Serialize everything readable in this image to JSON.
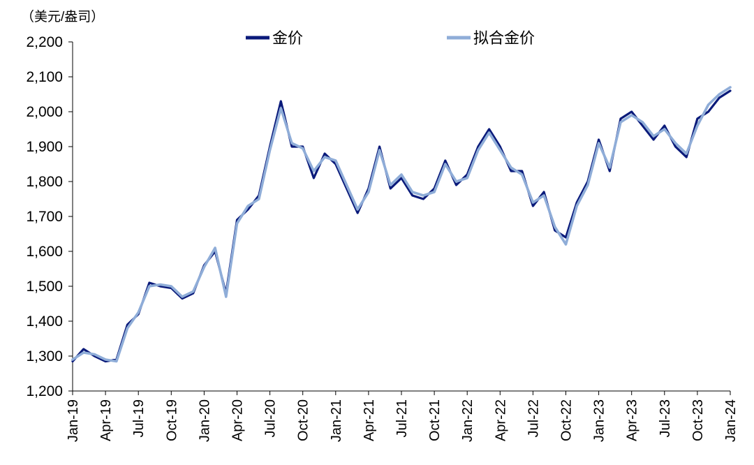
{
  "chart_data": {
    "type": "line",
    "unit_label": "（美元/盎司）",
    "ylim": [
      1200,
      2200
    ],
    "yticks": [
      1200,
      1300,
      1400,
      1500,
      1600,
      1700,
      1800,
      1900,
      2000,
      2100,
      2200
    ],
    "ytick_labels": [
      "1,200",
      "1,300",
      "1,400",
      "1,500",
      "1,600",
      "1,700",
      "1,800",
      "1,900",
      "2,000",
      "2,100",
      "2,200"
    ],
    "xlim": [
      "2019-01",
      "2024-01"
    ],
    "xticks": [
      "Jan-19",
      "Apr-19",
      "Jul-19",
      "Oct-19",
      "Jan-20",
      "Apr-20",
      "Jul-20",
      "Oct-20",
      "Jan-21",
      "Apr-21",
      "Jul-21",
      "Oct-21",
      "Jan-22",
      "Apr-22",
      "Jul-22",
      "Oct-22",
      "Jan-23",
      "Apr-23",
      "Jul-23",
      "Oct-23",
      "Jan-24"
    ],
    "grid": false,
    "legend_position": "top-center",
    "series": [
      {
        "name": "金价",
        "color": "#0a1a7a",
        "points": [
          [
            "2019-01",
            1285
          ],
          [
            "2019-02",
            1320
          ],
          [
            "2019-03",
            1300
          ],
          [
            "2019-04",
            1285
          ],
          [
            "2019-05",
            1290
          ],
          [
            "2019-06",
            1390
          ],
          [
            "2019-07",
            1420
          ],
          [
            "2019-08",
            1510
          ],
          [
            "2019-09",
            1500
          ],
          [
            "2019-10",
            1495
          ],
          [
            "2019-11",
            1465
          ],
          [
            "2019-12",
            1480
          ],
          [
            "2020-01",
            1560
          ],
          [
            "2020-02",
            1600
          ],
          [
            "2020-03",
            1480
          ],
          [
            "2020-04",
            1690
          ],
          [
            "2020-05",
            1720
          ],
          [
            "2020-06",
            1760
          ],
          [
            "2020-07",
            1900
          ],
          [
            "2020-08",
            2030
          ],
          [
            "2020-09",
            1900
          ],
          [
            "2020-10",
            1900
          ],
          [
            "2020-11",
            1810
          ],
          [
            "2020-12",
            1880
          ],
          [
            "2021-01",
            1850
          ],
          [
            "2021-02",
            1780
          ],
          [
            "2021-03",
            1710
          ],
          [
            "2021-04",
            1780
          ],
          [
            "2021-05",
            1900
          ],
          [
            "2021-06",
            1780
          ],
          [
            "2021-07",
            1810
          ],
          [
            "2021-08",
            1760
          ],
          [
            "2021-09",
            1750
          ],
          [
            "2021-10",
            1780
          ],
          [
            "2021-11",
            1860
          ],
          [
            "2021-12",
            1790
          ],
          [
            "2022-01",
            1820
          ],
          [
            "2022-02",
            1900
          ],
          [
            "2022-03",
            1950
          ],
          [
            "2022-04",
            1900
          ],
          [
            "2022-05",
            1830
          ],
          [
            "2022-06",
            1830
          ],
          [
            "2022-07",
            1730
          ],
          [
            "2022-08",
            1770
          ],
          [
            "2022-09",
            1660
          ],
          [
            "2022-10",
            1640
          ],
          [
            "2022-11",
            1740
          ],
          [
            "2022-12",
            1800
          ],
          [
            "2023-01",
            1920
          ],
          [
            "2023-02",
            1830
          ],
          [
            "2023-03",
            1980
          ],
          [
            "2023-04",
            2000
          ],
          [
            "2023-05",
            1960
          ],
          [
            "2023-06",
            1920
          ],
          [
            "2023-07",
            1960
          ],
          [
            "2023-08",
            1900
          ],
          [
            "2023-09",
            1870
          ],
          [
            "2023-10",
            1980
          ],
          [
            "2023-11",
            2000
          ],
          [
            "2023-12",
            2040
          ],
          [
            "2024-01",
            2060
          ]
        ]
      },
      {
        "name": "拟合金价",
        "color": "#8fadd8",
        "points": [
          [
            "2019-01",
            1290
          ],
          [
            "2019-02",
            1310
          ],
          [
            "2019-03",
            1305
          ],
          [
            "2019-04",
            1290
          ],
          [
            "2019-05",
            1285
          ],
          [
            "2019-06",
            1380
          ],
          [
            "2019-07",
            1425
          ],
          [
            "2019-08",
            1500
          ],
          [
            "2019-09",
            1505
          ],
          [
            "2019-10",
            1500
          ],
          [
            "2019-11",
            1470
          ],
          [
            "2019-12",
            1485
          ],
          [
            "2020-01",
            1555
          ],
          [
            "2020-02",
            1610
          ],
          [
            "2020-03",
            1470
          ],
          [
            "2020-04",
            1680
          ],
          [
            "2020-05",
            1730
          ],
          [
            "2020-06",
            1750
          ],
          [
            "2020-07",
            1890
          ],
          [
            "2020-08",
            2010
          ],
          [
            "2020-09",
            1910
          ],
          [
            "2020-10",
            1895
          ],
          [
            "2020-11",
            1830
          ],
          [
            "2020-12",
            1870
          ],
          [
            "2021-01",
            1860
          ],
          [
            "2021-02",
            1790
          ],
          [
            "2021-03",
            1720
          ],
          [
            "2021-04",
            1770
          ],
          [
            "2021-05",
            1890
          ],
          [
            "2021-06",
            1790
          ],
          [
            "2021-07",
            1820
          ],
          [
            "2021-08",
            1770
          ],
          [
            "2021-09",
            1760
          ],
          [
            "2021-10",
            1770
          ],
          [
            "2021-11",
            1850
          ],
          [
            "2021-12",
            1800
          ],
          [
            "2022-01",
            1810
          ],
          [
            "2022-02",
            1890
          ],
          [
            "2022-03",
            1940
          ],
          [
            "2022-04",
            1890
          ],
          [
            "2022-05",
            1840
          ],
          [
            "2022-06",
            1820
          ],
          [
            "2022-07",
            1740
          ],
          [
            "2022-08",
            1760
          ],
          [
            "2022-09",
            1670
          ],
          [
            "2022-10",
            1620
          ],
          [
            "2022-11",
            1730
          ],
          [
            "2022-12",
            1790
          ],
          [
            "2023-01",
            1910
          ],
          [
            "2023-02",
            1840
          ],
          [
            "2023-03",
            1970
          ],
          [
            "2023-04",
            1990
          ],
          [
            "2023-05",
            1970
          ],
          [
            "2023-06",
            1930
          ],
          [
            "2023-07",
            1950
          ],
          [
            "2023-08",
            1910
          ],
          [
            "2023-09",
            1880
          ],
          [
            "2023-10",
            1960
          ],
          [
            "2023-11",
            2020
          ],
          [
            "2023-12",
            2050
          ],
          [
            "2024-01",
            2070
          ]
        ]
      }
    ]
  }
}
